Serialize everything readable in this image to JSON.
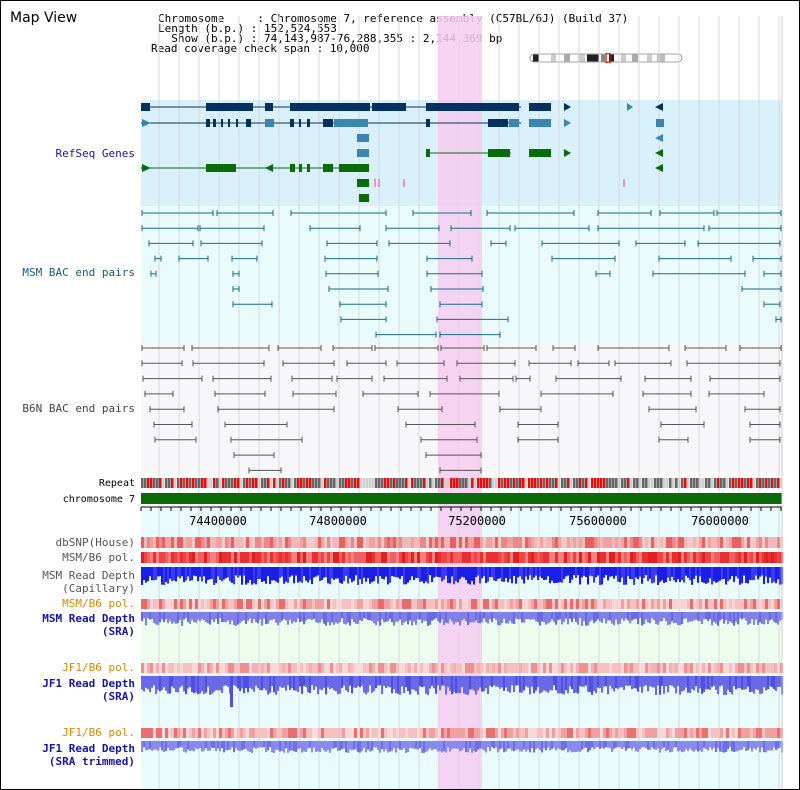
{
  "title": "Map View",
  "header": {
    "chromosome_key": "Chromosome     : ",
    "chromosome_value": "Chromosome 7, reference assembly (C57BL/6J) (Build 37)",
    "length_key": "Length (b.p.) : ",
    "length_value": "152,524,553",
    "show_key": "  Show (b.p.) : ",
    "show_value": "74,143,987-76,288,355 : 2,144,369 bp",
    "coverage_key": "Read coverage check span : ",
    "coverage_value": "10,000"
  },
  "tracks": {
    "refseq": "RefSeq Genes",
    "msm_bac": "MSM BAC end pairs",
    "b6n_bac": "B6N BAC end pairs",
    "repeat": "Repeat",
    "chromosome": "chromosome 7",
    "dbsnp": "dbSNP(House)",
    "msm_b6_pol_1": "MSM/B6 pol.",
    "msm_depth_cap_1": "MSM Read Depth",
    "msm_depth_cap_2": "(Capillary)",
    "msm_b6_pol_2": "MSM/B6 pol.",
    "msm_depth_sra_1": "MSM Read Depth",
    "msm_depth_sra_2": "(SRA)",
    "jf1_b6_pol_1": "JF1/B6 pol.",
    "jf1_depth_sra_1": "JF1 Read Depth",
    "jf1_depth_sra_2": "(SRA)",
    "jf1_b6_pol_2": "JF1/B6 pol.",
    "jf1_depth_trim_1": "JF1 Read Depth",
    "jf1_depth_trim_2": "(SRA trimmed)"
  },
  "axis": {
    "ticks": [
      "74400000",
      "74800000",
      "75200000",
      "75600000",
      "76000000"
    ]
  },
  "colors": {
    "refseq_bg": "#d9f1fa",
    "msm_bg": "#e9fbfb",
    "b6n_bg": "#f7f7f9",
    "highlight": "#f5cdf0",
    "navy": "#063060",
    "teal": "#3a86b0",
    "green": "#0b6b0b",
    "bac_line": "#1a6a8a",
    "b6n_line": "#555555",
    "chrom_green": "#0a6a0a",
    "depth_blue": "#1a1ee6",
    "depth_light": "#7070e8",
    "label_blue": "#1414aa",
    "label_orange": "#d98a00"
  }
}
